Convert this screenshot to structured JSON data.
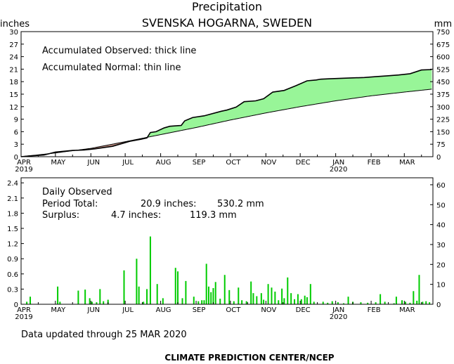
{
  "chart_data": [
    {
      "type": "area",
      "title": "Precipitation",
      "subtitle": "SVENSKA HOGARNA, SWEDEN",
      "ylabel_left": "inches",
      "ylabel_right": "mm",
      "ylim": [
        0,
        30
      ],
      "ylim_right": [
        0,
        750
      ],
      "y_ticks": [
        "0",
        "3",
        "6",
        "9",
        "12",
        "15",
        "18",
        "21",
        "24",
        "27",
        "30"
      ],
      "y_ticks_right": [
        "0",
        "75",
        "150",
        "225",
        "300",
        "375",
        "450",
        "525",
        "600",
        "675",
        "750"
      ],
      "x_month_labels": [
        "APR",
        "MAY",
        "JUN",
        "JUL",
        "AUG",
        "SEP",
        "OCT",
        "NOV",
        "DEC",
        "JAN",
        "FEB",
        "MAR"
      ],
      "x_year_labels": [
        {
          "month": "APR",
          "year": "2019"
        },
        {
          "month": "JAN",
          "year": "2020"
        }
      ],
      "annotations": [
        "Accumulated Observed: thick line",
        "Accumulated Normal: thin line"
      ],
      "fill_colors": {
        "surplus": "#98f598",
        "deficit": "#c49084"
      },
      "x_unit": "days since start of Apr 2019",
      "series": [
        {
          "name": "Accumulated Observed",
          "x": [
            0,
            8,
            20,
            30,
            45,
            55,
            65,
            80,
            95,
            105,
            110,
            113,
            118,
            125,
            130,
            140,
            143,
            150,
            160,
            175,
            180,
            188,
            195,
            205,
            212,
            220,
            230,
            240,
            250,
            258,
            262,
            270,
            280,
            290,
            300,
            310,
            320,
            330,
            340,
            350,
            359
          ],
          "values": [
            0,
            0.2,
            0.4,
            1.1,
            1.5,
            1.6,
            1.9,
            2.5,
            3.7,
            4.2,
            4.5,
            5.8,
            6.0,
            6.9,
            7.3,
            7.5,
            8.6,
            9.4,
            9.8,
            10.9,
            11.2,
            11.9,
            13.2,
            13.4,
            13.9,
            15.5,
            15.9,
            17.0,
            18.2,
            18.4,
            18.6,
            18.7,
            18.8,
            18.9,
            19.0,
            19.2,
            19.4,
            19.6,
            19.9,
            20.8,
            20.9
          ]
        },
        {
          "name": "Accumulated Normal",
          "x": [
            0,
            30,
            61,
            91,
            122,
            153,
            183,
            214,
            244,
            275,
            306,
            335,
            359
          ],
          "values": [
            0,
            0.9,
            2.0,
            3.6,
            5.3,
            7.0,
            8.8,
            10.5,
            12.0,
            13.4,
            14.6,
            15.5,
            16.2
          ]
        }
      ]
    },
    {
      "type": "bar",
      "title": "Daily Observed",
      "ylim": [
        0,
        2.5
      ],
      "ylim_right": [
        0,
        63.5
      ],
      "y_ticks": [
        "0",
        "0.3",
        "0.6",
        "0.9",
        "1.2",
        "1.5",
        "1.8",
        "2.1",
        "2.4"
      ],
      "y_ticks_right": [
        "0",
        "10",
        "20",
        "30",
        "40",
        "50",
        "60"
      ],
      "x_month_labels": [
        "APR",
        "MAY",
        "JUN",
        "JUL",
        "AUG",
        "SEP",
        "OCT",
        "NOV",
        "DEC",
        "JAN",
        "FEB",
        "MAR"
      ],
      "x_year_labels": [
        {
          "month": "APR",
          "year": "2019"
        },
        {
          "month": "JAN",
          "year": "2020"
        }
      ],
      "bar_color": "#00cc00",
      "x_unit": "days since start of Apr 2019",
      "annotations": [
        {
          "label": "Period Total:",
          "inches": "20.9 inches:",
          "mm": "530.2 mm"
        },
        {
          "label": "Surplus:",
          "inches": "4.7 inches:",
          "mm": "119.3 mm"
        }
      ],
      "days": [
        5,
        8,
        32,
        34,
        50,
        56,
        60,
        62,
        66,
        69,
        72,
        76,
        90,
        101,
        103,
        107,
        110,
        113,
        119,
        124,
        135,
        137,
        141,
        144,
        151,
        155,
        158,
        160,
        162,
        164,
        166,
        168,
        170,
        174,
        178,
        182,
        186,
        190,
        193,
        197,
        201,
        203,
        206,
        210,
        212,
        216,
        219,
        222,
        225,
        228,
        230,
        233,
        236,
        239,
        242,
        245,
        248,
        250,
        253,
        256,
        264,
        268,
        272,
        277,
        282,
        286,
        290,
        297,
        303,
        310,
        314,
        318,
        326,
        328,
        333,
        336,
        340,
        343,
        346,
        348,
        351,
        354,
        357
      ],
      "values": [
        0.05,
        0.15,
        0.35,
        0.05,
        0.27,
        0.29,
        0.12,
        0.05,
        0.04,
        0.3,
        0.06,
        0.09,
        0.67,
        0.9,
        0.35,
        0.05,
        0.3,
        1.34,
        0.4,
        0.12,
        0.72,
        0.65,
        0.12,
        0.46,
        0.15,
        0.06,
        0.08,
        0.08,
        0.8,
        0.35,
        0.24,
        0.32,
        0.44,
        0.11,
        0.58,
        0.28,
        0.06,
        0.33,
        0.08,
        0.06,
        0.45,
        0.22,
        0.16,
        0.22,
        0.09,
        0.4,
        0.33,
        0.25,
        0.08,
        0.31,
        0.12,
        0.53,
        0.22,
        0.1,
        0.2,
        0.1,
        0.17,
        0.14,
        0.4,
        0.05,
        0.05,
        0.03,
        0.06,
        0.04,
        0.02,
        0.15,
        0.05,
        0.04,
        0.03,
        0.04,
        0.2,
        0.05,
        0.02,
        0.15,
        0.08,
        0.05,
        0.03,
        0.26,
        0.07,
        0.58,
        0.05,
        0.06,
        0.04
      ]
    }
  ],
  "footer": {
    "updated": "Data updated through 25 MAR 2020",
    "credit": "CLIMATE PREDICTION CENTER/NCEP"
  }
}
